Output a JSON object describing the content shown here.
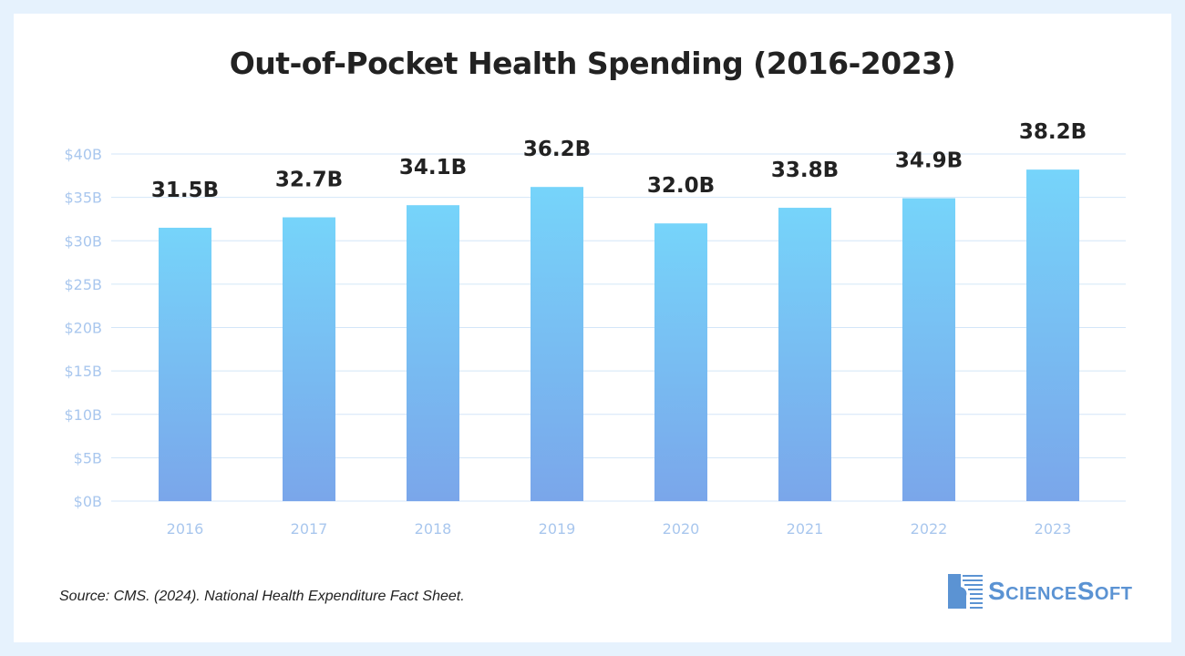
{
  "chart_data": {
    "type": "bar",
    "title": "Out-of-Pocket Health Spending (2016-2023)",
    "categories": [
      "2016",
      "2017",
      "2018",
      "2019",
      "2020",
      "2021",
      "2022",
      "2023"
    ],
    "values": [
      31.5,
      32.7,
      34.1,
      36.2,
      32.0,
      33.8,
      34.9,
      38.2
    ],
    "data_labels": [
      "31.5B",
      "32.7B",
      "34.1B",
      "36.2B",
      "32.0B",
      "33.8B",
      "34.9B",
      "38.2B"
    ],
    "y_ticks": [
      0,
      5,
      10,
      15,
      20,
      25,
      30,
      35,
      40
    ],
    "y_tick_labels": [
      "$0B",
      "$5B",
      "$10B",
      "$15B",
      "$20B",
      "$25B",
      "$30B",
      "$35B",
      "$40B"
    ],
    "xlabel": "",
    "ylabel": "",
    "ylim": [
      0,
      40
    ],
    "grid": true,
    "colors": {
      "bar_top": "#76d4fa",
      "bar_bottom": "#7aa6ea",
      "grid": "#d3e6f8",
      "tick": "#a9c7ee"
    }
  },
  "source": "Source: CMS. (2024). National Health Expenditure Fact Sheet.",
  "logo": "ScienceSoft"
}
